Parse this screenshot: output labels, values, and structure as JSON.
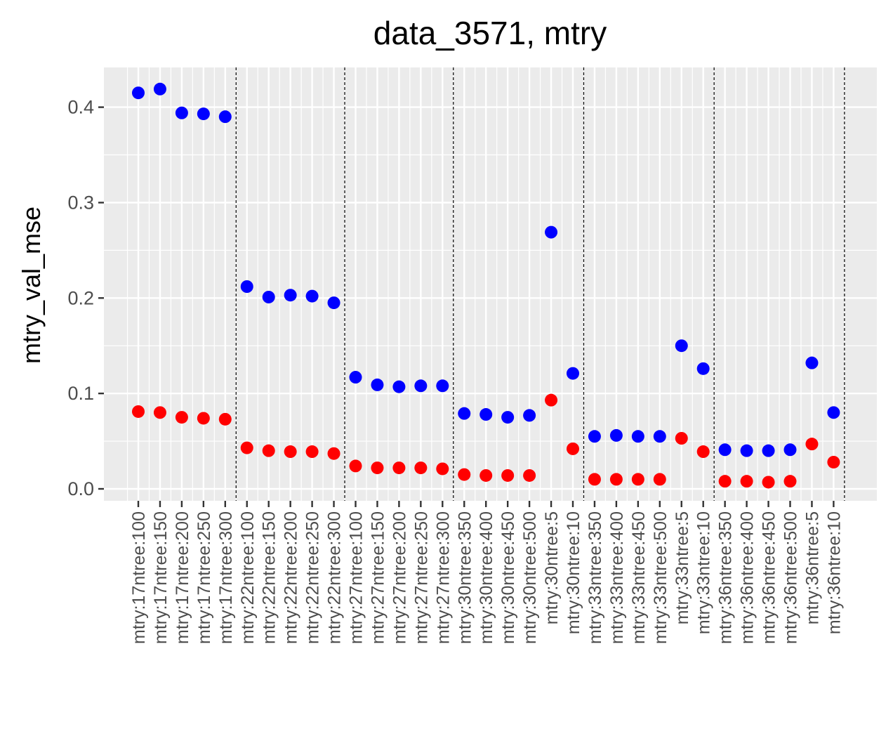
{
  "chart_data": {
    "type": "scatter",
    "title": "data_3571, mtry",
    "xlabel": "",
    "ylabel": "mtry_val_mse",
    "ylim": [
      -0.012,
      0.44
    ],
    "yticks": [
      0.0,
      0.1,
      0.2,
      0.3,
      0.4
    ],
    "ytick_labels": [
      "0.0",
      "0.1",
      "0.2",
      "0.3",
      "0.4"
    ],
    "grid": true,
    "legend": "none",
    "categories": [
      "mtry:17ntree:100",
      "mtry:17ntree:150",
      "mtry:17ntree:200",
      "mtry:17ntree:250",
      "mtry:17ntree:300",
      "mtry:22ntree:100",
      "mtry:22ntree:150",
      "mtry:22ntree:200",
      "mtry:22ntree:250",
      "mtry:22ntree:300",
      "mtry:27ntree:100",
      "mtry:27ntree:150",
      "mtry:27ntree:200",
      "mtry:27ntree:250",
      "mtry:27ntree:300",
      "mtry:30ntree:350",
      "mtry:30ntree:400",
      "mtry:30ntree:450",
      "mtry:30ntree:500",
      "mtry:30ntree:5",
      "mtry:30ntree:10",
      "mtry:33ntree:350",
      "mtry:33ntree:400",
      "mtry:33ntree:450",
      "mtry:33ntree:500",
      "mtry:33ntree:5",
      "mtry:33ntree:10",
      "mtry:36ntree:350",
      "mtry:36ntree:400",
      "mtry:36ntree:450",
      "mtry:36ntree:500",
      "mtry:36ntree:5",
      "mtry:36ntree:10"
    ],
    "group_separators_after": [
      "mtry:17ntree:300",
      "mtry:22ntree:300",
      "mtry:27ntree:300",
      "mtry:30ntree:10",
      "mtry:33ntree:10",
      "mtry:36ntree:10"
    ],
    "series": [
      {
        "color": "#0000ff",
        "values": [
          0.415,
          0.419,
          0.394,
          0.393,
          0.39,
          0.212,
          0.201,
          0.203,
          0.202,
          0.195,
          0.117,
          0.109,
          0.107,
          0.108,
          0.108,
          0.079,
          0.078,
          0.075,
          0.077,
          0.269,
          0.121,
          0.055,
          0.056,
          0.055,
          0.055,
          0.15,
          0.126,
          0.041,
          0.04,
          0.04,
          0.041,
          0.132,
          0.08
        ]
      },
      {
        "color": "#ff0000",
        "values": [
          0.081,
          0.08,
          0.075,
          0.074,
          0.073,
          0.043,
          0.04,
          0.039,
          0.039,
          0.037,
          0.024,
          0.022,
          0.022,
          0.022,
          0.021,
          0.015,
          0.014,
          0.014,
          0.014,
          0.093,
          0.042,
          0.01,
          0.01,
          0.01,
          0.01,
          0.053,
          0.039,
          0.008,
          0.008,
          0.007,
          0.008,
          0.047,
          0.028
        ]
      }
    ]
  },
  "colors": {
    "panel_background": "#ebebeb",
    "grid_major": "#ffffff",
    "axis_text": "#4d4d4d"
  }
}
